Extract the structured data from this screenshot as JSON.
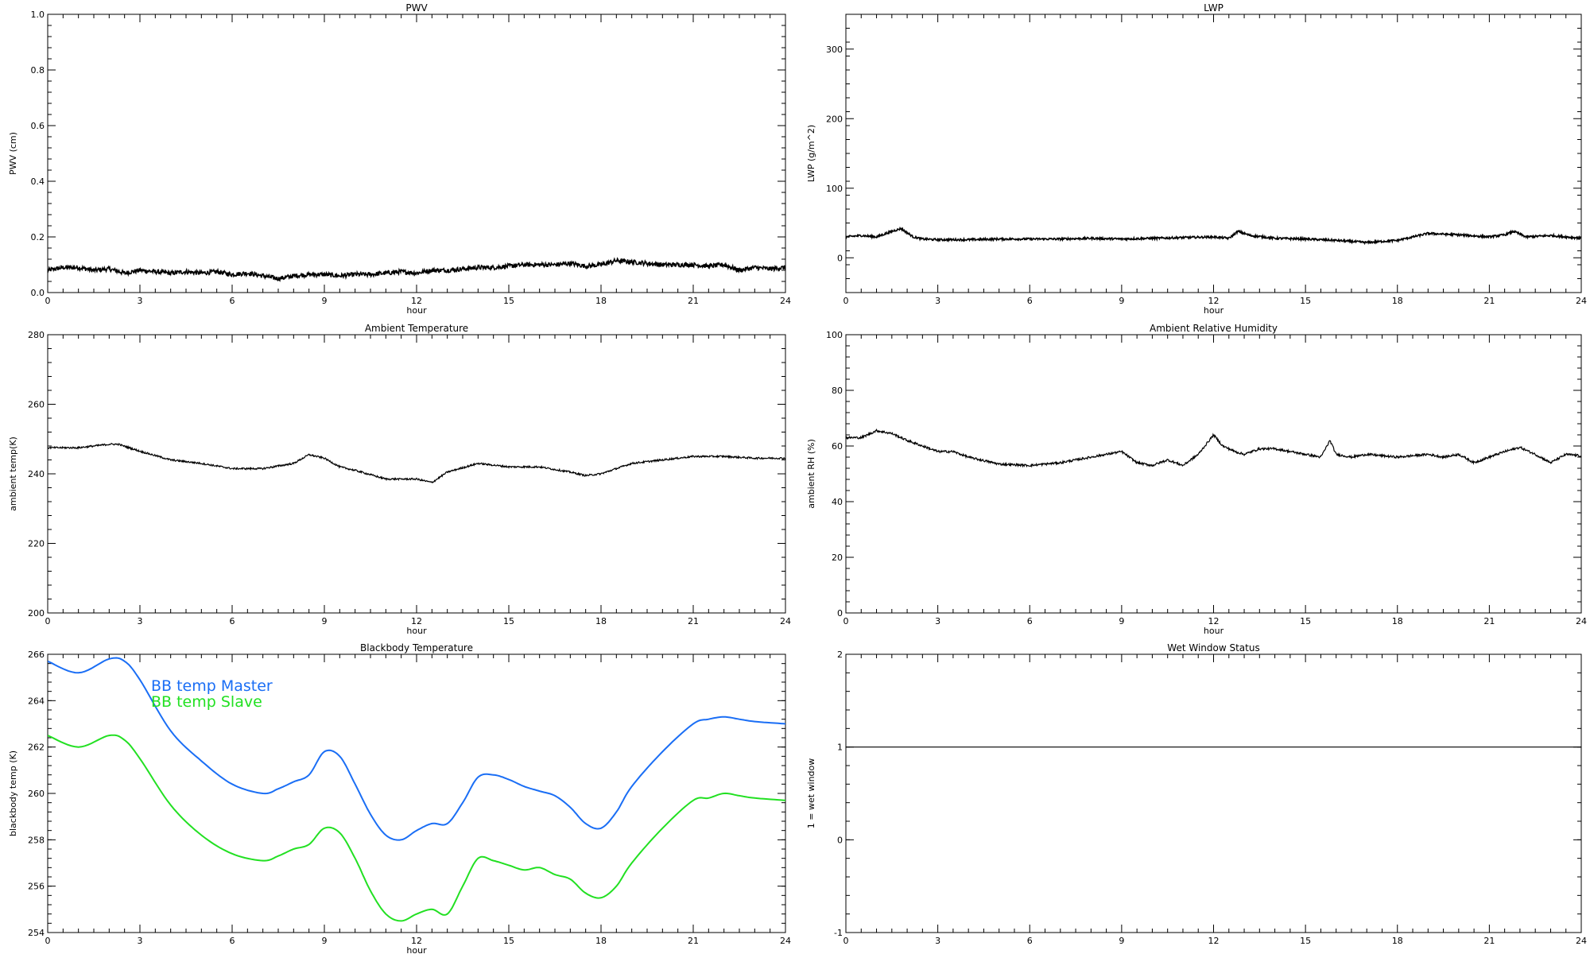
{
  "chart_data": [
    {
      "type": "line",
      "title": "PWV",
      "xlabel": "hour",
      "ylabel": "PWV (cm)",
      "xlim": [
        0,
        24
      ],
      "ylim": [
        0.0,
        1.0
      ],
      "xticks": [
        "0",
        "3",
        "6",
        "9",
        "12",
        "15",
        "18",
        "21",
        "24"
      ],
      "yticks": [
        "0.0",
        "0.2",
        "0.4",
        "0.6",
        "0.8",
        "1.0"
      ],
      "noise": 0.008,
      "series": [
        {
          "color": "#000000",
          "x": [
            0,
            0.5,
            1,
            1.5,
            2,
            2.5,
            3,
            3.5,
            4,
            4.5,
            5,
            5.5,
            6,
            6.5,
            7,
            7.5,
            8,
            8.5,
            9,
            9.5,
            10,
            10.5,
            11,
            11.5,
            12,
            12.5,
            13,
            13.5,
            14,
            14.5,
            15,
            15.5,
            16,
            16.5,
            17,
            17.5,
            18,
            18.5,
            19,
            19.5,
            20,
            20.5,
            21,
            21.5,
            22,
            22.5,
            23,
            23.5,
            24
          ],
          "y": [
            0.08,
            0.09,
            0.09,
            0.08,
            0.085,
            0.07,
            0.08,
            0.075,
            0.07,
            0.075,
            0.07,
            0.075,
            0.065,
            0.07,
            0.06,
            0.05,
            0.06,
            0.065,
            0.065,
            0.06,
            0.065,
            0.065,
            0.07,
            0.075,
            0.07,
            0.08,
            0.08,
            0.085,
            0.09,
            0.09,
            0.095,
            0.1,
            0.1,
            0.1,
            0.105,
            0.095,
            0.1,
            0.115,
            0.11,
            0.105,
            0.1,
            0.1,
            0.1,
            0.095,
            0.1,
            0.08,
            0.09,
            0.085,
            0.09
          ]
        }
      ]
    },
    {
      "type": "line",
      "title": "LWP",
      "xlabel": "hour",
      "ylabel": "LWP (g/m^2)",
      "xlim": [
        0,
        24
      ],
      "ylim": [
        -50,
        350
      ],
      "xticks": [
        "0",
        "3",
        "6",
        "9",
        "12",
        "15",
        "18",
        "21",
        "24"
      ],
      "yticks": [
        "0",
        "100",
        "200",
        "300"
      ],
      "noise": 1.5,
      "series": [
        {
          "color": "#000000",
          "x": [
            0,
            0.5,
            1,
            1.5,
            1.8,
            2.2,
            2.5,
            3,
            4,
            5,
            6,
            7,
            8,
            9,
            10,
            11,
            12,
            12.5,
            12.8,
            13.2,
            14,
            15,
            16,
            17,
            18,
            18.5,
            19,
            20,
            21,
            21.5,
            21.8,
            22.2,
            23,
            24
          ],
          "y": [
            30,
            32,
            30,
            38,
            42,
            30,
            27,
            26,
            26,
            27,
            27,
            27,
            28,
            27,
            28,
            29,
            30,
            28,
            38,
            32,
            28,
            27,
            25,
            22,
            25,
            30,
            35,
            33,
            30,
            33,
            38,
            30,
            32,
            28
          ]
        }
      ]
    },
    {
      "type": "line",
      "title": "Ambient Temperature",
      "xlabel": "hour",
      "ylabel": "ambient temp(K)",
      "xlim": [
        0,
        24
      ],
      "ylim": [
        200,
        280
      ],
      "xticks": [
        "0",
        "3",
        "6",
        "9",
        "12",
        "15",
        "18",
        "21",
        "24"
      ],
      "yticks": [
        "200",
        "220",
        "240",
        "260",
        "280"
      ],
      "noise": 0.25,
      "series": [
        {
          "color": "#000000",
          "x": [
            0,
            1,
            2,
            2.3,
            3,
            4,
            5,
            6,
            7,
            8,
            8.5,
            9,
            9.5,
            10,
            11,
            12,
            12.5,
            13,
            14,
            15,
            16,
            17,
            17.5,
            18,
            19,
            20,
            21,
            22,
            23,
            24
          ],
          "y": [
            247.5,
            247.5,
            248.5,
            248.5,
            246.5,
            244,
            243,
            241.5,
            241.5,
            243,
            245.5,
            244.5,
            242,
            241,
            238.5,
            238.5,
            237.5,
            240.5,
            243,
            242,
            242,
            240.5,
            239.5,
            240,
            243,
            244,
            245,
            245,
            244.5,
            244.5
          ]
        }
      ]
    },
    {
      "type": "line",
      "title": "Ambient Relative Humidity",
      "xlabel": "hour",
      "ylabel": "ambient RH (%)",
      "xlim": [
        0,
        24
      ],
      "ylim": [
        0,
        100
      ],
      "xticks": [
        "0",
        "3",
        "6",
        "9",
        "12",
        "15",
        "18",
        "21",
        "24"
      ],
      "yticks": [
        "0",
        "20",
        "40",
        "60",
        "80",
        "100"
      ],
      "noise": 0.4,
      "series": [
        {
          "color": "#000000",
          "x": [
            0,
            0.5,
            1,
            1.5,
            2,
            2.5,
            3,
            3.5,
            4,
            5,
            6,
            7,
            7.5,
            8,
            8.5,
            9,
            9.5,
            10,
            10.5,
            11,
            11.5,
            12,
            12.3,
            12.7,
            13,
            13.5,
            14,
            15,
            15.5,
            15.8,
            16,
            16.5,
            17,
            18,
            19,
            19.5,
            20,
            20.5,
            21,
            21.5,
            22,
            22.5,
            23,
            23.5,
            24
          ],
          "y": [
            63,
            63,
            65.5,
            64.5,
            62,
            60,
            58,
            58,
            56,
            53.5,
            53,
            54,
            55,
            56,
            57,
            58,
            54,
            53,
            55,
            53,
            57,
            64,
            60,
            58,
            57,
            59,
            59,
            57,
            56,
            62,
            57,
            56,
            57,
            56,
            57,
            56,
            57,
            54,
            56,
            58,
            59.5,
            57,
            54,
            57,
            56.5
          ]
        }
      ]
    },
    {
      "type": "line",
      "title": "Blackbody Temperature",
      "xlabel": "hour",
      "ylabel": "blackbody temp (K)",
      "xlim": [
        0,
        24
      ],
      "ylim": [
        254,
        266
      ],
      "xticks": [
        "0",
        "3",
        "6",
        "9",
        "12",
        "15",
        "18",
        "21",
        "24"
      ],
      "yticks": [
        "254",
        "256",
        "258",
        "260",
        "262",
        "264",
        "266"
      ],
      "legend": "top-left",
      "noise": 0,
      "series": [
        {
          "name": "BB temp Master",
          "color": "#1a6ef5",
          "x": [
            0,
            1,
            2,
            2.5,
            3,
            4,
            5,
            6,
            7,
            7.5,
            8,
            8.5,
            9,
            9.5,
            10,
            10.5,
            11,
            11.5,
            12,
            12.5,
            13,
            13.5,
            14,
            14.5,
            15,
            15.5,
            16,
            16.5,
            17,
            17.5,
            18,
            18.5,
            19,
            20,
            21,
            21.5,
            22,
            22.5,
            23,
            24
          ],
          "y": [
            265.7,
            265.2,
            265.8,
            265.7,
            264.9,
            262.7,
            261.4,
            260.4,
            260.0,
            260.2,
            260.5,
            260.8,
            261.8,
            261.6,
            260.4,
            259.1,
            258.2,
            258.0,
            258.4,
            258.7,
            258.7,
            259.6,
            260.7,
            260.8,
            260.6,
            260.3,
            260.1,
            259.9,
            259.4,
            258.7,
            258.5,
            259.2,
            260.3,
            261.8,
            263.0,
            263.2,
            263.3,
            263.2,
            263.1,
            263.0
          ]
        },
        {
          "name": "BB temp Slave",
          "color": "#22e022",
          "x": [
            0,
            1,
            2,
            2.5,
            3,
            4,
            5,
            6,
            7,
            7.5,
            8,
            8.5,
            9,
            9.5,
            10,
            10.5,
            11,
            11.5,
            12,
            12.5,
            13,
            13.5,
            14,
            14.5,
            15,
            15.5,
            16,
            16.5,
            17,
            17.5,
            18,
            18.5,
            19,
            20,
            21,
            21.5,
            22,
            22.5,
            23,
            24
          ],
          "y": [
            262.5,
            262.0,
            262.5,
            262.3,
            261.5,
            259.5,
            258.2,
            257.4,
            257.1,
            257.3,
            257.6,
            257.8,
            258.5,
            258.3,
            257.2,
            255.8,
            254.8,
            254.5,
            254.8,
            255.0,
            254.8,
            256.0,
            257.2,
            257.1,
            256.9,
            256.7,
            256.8,
            256.5,
            256.3,
            255.7,
            255.5,
            256.0,
            257.0,
            258.5,
            259.7,
            259.8,
            260.0,
            259.9,
            259.8,
            259.7
          ]
        }
      ]
    },
    {
      "type": "line",
      "title": "Wet Window Status",
      "xlabel": "",
      "ylabel": "1 = wet window",
      "xlim": [
        0,
        24
      ],
      "ylim": [
        -1,
        2
      ],
      "xticks": [
        "0",
        "3",
        "6",
        "9",
        "12",
        "15",
        "18",
        "21",
        "24"
      ],
      "yticks": [
        "-1",
        "0",
        "1",
        "2"
      ],
      "noise": 0,
      "series": [
        {
          "color": "#000000",
          "x": [
            0,
            24
          ],
          "y": [
            1,
            1
          ]
        }
      ]
    }
  ]
}
